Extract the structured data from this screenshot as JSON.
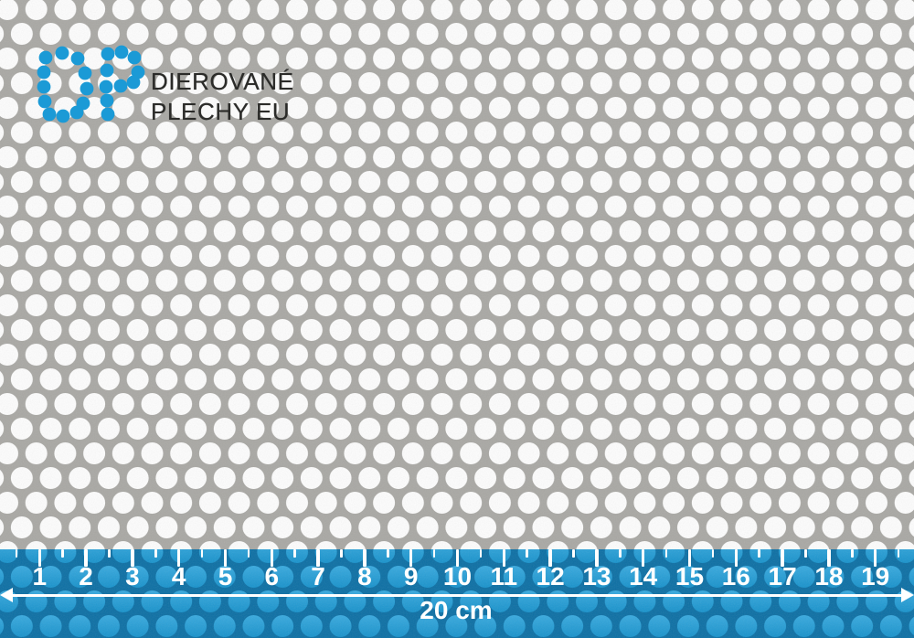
{
  "brand": {
    "name_line1": "DIEROVANÉ",
    "name_line2": "PLECHY EU"
  },
  "ruler": {
    "marks": [
      "1",
      "2",
      "3",
      "4",
      "5",
      "6",
      "7",
      "8",
      "9",
      "10",
      "11",
      "12",
      "13",
      "14",
      "15",
      "16",
      "17",
      "18",
      "19"
    ],
    "length_label": "20 cm"
  },
  "colors": {
    "sheet_gray": "#a9a8a4",
    "hole_white": "#fdfdfd",
    "brand_blue": "#1b9ad6",
    "band_blue": "#0c6fa4",
    "band_hole_top": "#38aadf",
    "band_hole_bottom": "#1792cb",
    "text_dark": "#2b2b29",
    "ruler_white": "#ffffff"
  }
}
